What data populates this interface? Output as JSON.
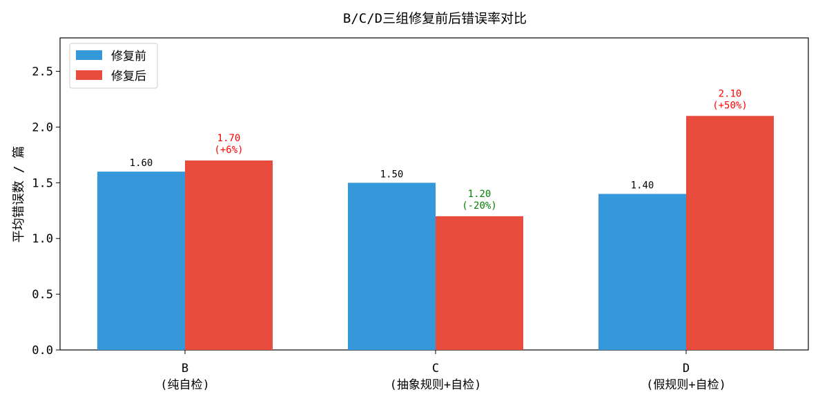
{
  "chart_data": {
    "type": "bar",
    "title": "B/C/D三组修复前后错误率对比",
    "ylabel": "平均错误数 / 篇",
    "xlabel": "",
    "ylim": [
      0,
      2.8
    ],
    "yticks": [
      "0.0",
      "0.5",
      "1.0",
      "1.5",
      "2.0",
      "2.5"
    ],
    "yticks_values": [
      0,
      0.5,
      1.0,
      1.5,
      2.0,
      2.5
    ],
    "categories": [
      {
        "line1": "B",
        "line2": "(纯自检)"
      },
      {
        "line1": "C",
        "line2": "(抽象规则+自检)"
      },
      {
        "line1": "D",
        "line2": "(假规则+自检)"
      }
    ],
    "series": [
      {
        "name": "修复前",
        "color": "#3498db",
        "values": [
          1.6,
          1.5,
          1.4
        ],
        "labels": [
          "1.60",
          "1.50",
          "1.40"
        ],
        "label_color": "#000000"
      },
      {
        "name": "修复后",
        "color": "#e74c3c",
        "values": [
          1.7,
          1.2,
          2.1
        ],
        "labels": [
          "1.70",
          "1.20",
          "2.10"
        ],
        "changes": [
          "(+6%)",
          "(-20%)",
          "(+50%)"
        ],
        "label_colors": [
          "#ff0000",
          "#008000",
          "#ff0000"
        ]
      }
    ],
    "grid": false,
    "legend_position": "top-left"
  }
}
